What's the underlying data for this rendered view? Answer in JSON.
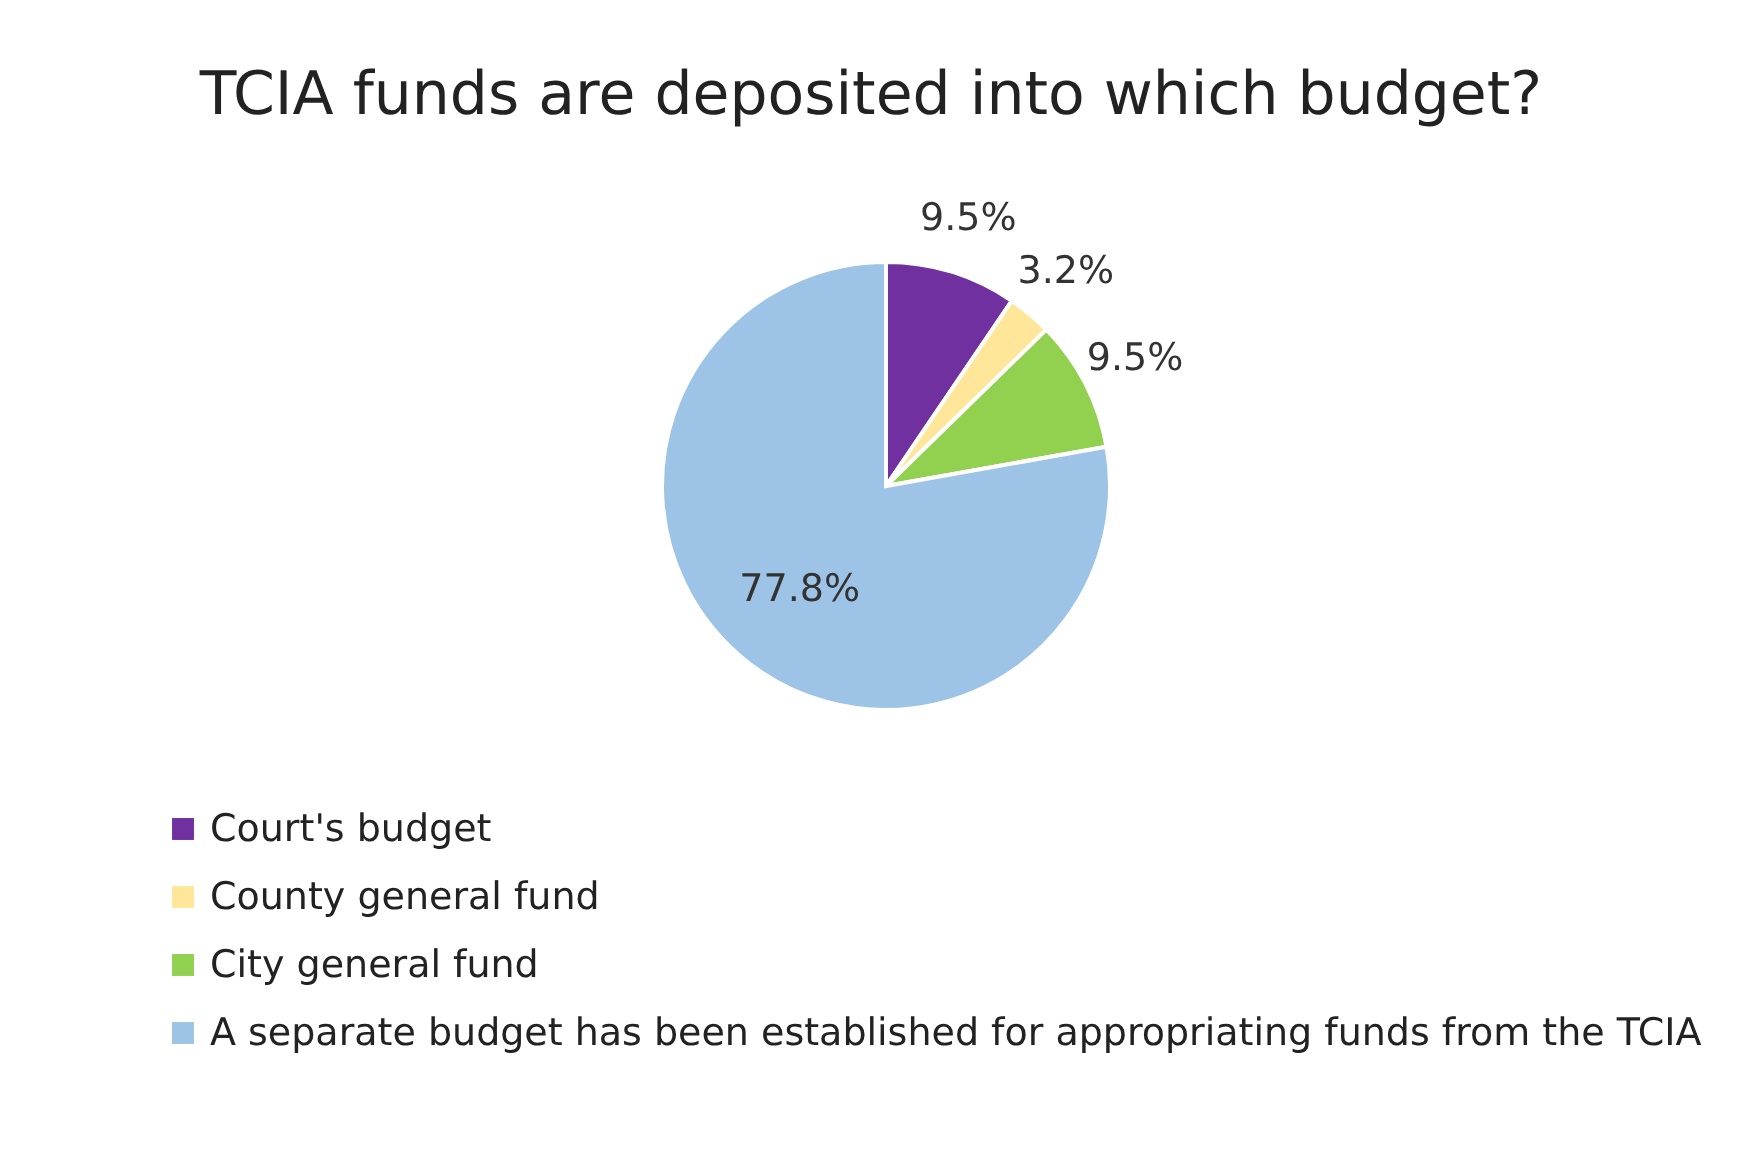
{
  "chart_data": {
    "type": "pie",
    "title": "TCIA funds are deposited into which budget?",
    "categories": [
      "Court's budget",
      "County general fund",
      "City general fund",
      "A separate budget has been established for appropriating funds from the TCIA"
    ],
    "values": [
      9.5,
      3.2,
      9.5,
      77.8
    ],
    "colors": [
      "#7030a0",
      "#ffe699",
      "#92d050",
      "#9dc3e6"
    ],
    "value_labels": [
      "9.5%",
      "3.2%",
      "9.5%",
      "77.8%"
    ],
    "legend": "bottom"
  }
}
